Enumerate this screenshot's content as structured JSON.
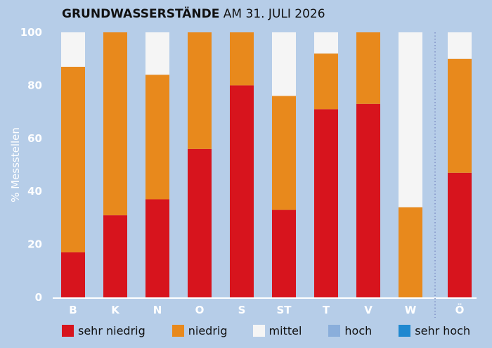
{
  "title": {
    "bold": "GRUNDWASSERSTÄNDE",
    "rest": "AM 31. JULI 2026"
  },
  "chart_data": {
    "type": "bar",
    "stacked": true,
    "ylabel": "% Messstellen",
    "ylim": [
      0,
      100
    ],
    "yticks": [
      0,
      20,
      40,
      60,
      80,
      100
    ],
    "grid": false,
    "legend_position": "bottom",
    "categories": [
      "B",
      "K",
      "N",
      "O",
      "S",
      "ST",
      "T",
      "V",
      "W",
      "Ö"
    ],
    "separator_before": "Ö",
    "series": [
      {
        "name": "sehr niedrig",
        "color": "#d7141d",
        "values": [
          17,
          31,
          37,
          56,
          80,
          33,
          71,
          73,
          0,
          47
        ]
      },
      {
        "name": "niedrig",
        "color": "#e8891c",
        "values": [
          70,
          69,
          47,
          44,
          20,
          43,
          21,
          27,
          34,
          43
        ]
      },
      {
        "name": "mittel",
        "color": "#f5f5f5",
        "values": [
          13,
          0,
          16,
          0,
          0,
          24,
          8,
          0,
          66,
          10
        ]
      },
      {
        "name": "hoch",
        "color": "#8aaedb",
        "values": [
          0,
          0,
          0,
          0,
          0,
          0,
          0,
          0,
          0,
          0
        ]
      },
      {
        "name": "sehr hoch",
        "color": "#1f88d0",
        "values": [
          0,
          0,
          0,
          0,
          0,
          0,
          0,
          0,
          0,
          0
        ]
      }
    ]
  }
}
